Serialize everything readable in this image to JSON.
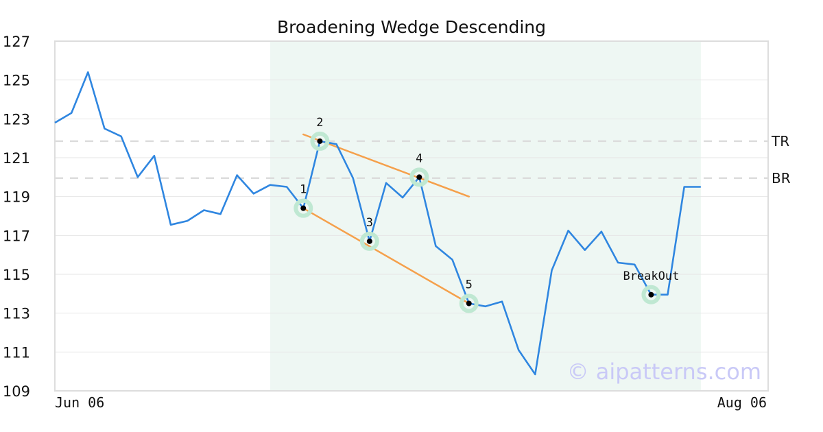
{
  "chart_data": {
    "type": "line",
    "title": "Broadening Wedge Descending",
    "xlabel": "",
    "ylabel": "",
    "ylim": [
      109,
      127
    ],
    "yticks": [
      109,
      111,
      113,
      115,
      117,
      119,
      121,
      123,
      125,
      127
    ],
    "x_tick_labels": [
      {
        "index": 0,
        "label": "Jun 06"
      },
      {
        "index": 43,
        "label": "Aug 06"
      }
    ],
    "x_count": 44,
    "series": [
      {
        "color": "#2f86e0",
        "values": [
          122.8,
          123.3,
          125.4,
          122.5,
          122.1,
          120.0,
          121.1,
          117.55,
          117.75,
          118.3,
          118.1,
          120.1,
          119.15,
          119.6,
          119.5,
          118.4,
          121.85,
          121.7,
          119.95,
          116.7,
          119.7,
          118.95,
          120.0,
          116.45,
          115.75,
          113.5,
          113.35,
          113.6,
          111.1,
          109.85,
          115.2,
          117.25,
          116.25,
          117.2,
          115.6,
          115.5,
          113.95,
          113.95,
          119.5,
          119.5
        ]
      }
    ],
    "shaded_region": {
      "from_index": 13,
      "to_index": 39,
      "color": "#eef7f3"
    },
    "reference_lines": [
      {
        "label": "TR",
        "y": 121.85
      },
      {
        "label": "BR",
        "y": 119.95
      }
    ],
    "trend_lines": [
      {
        "color": "#f5a04b",
        "from": {
          "x": 15,
          "y": 122.2
        },
        "to": {
          "x": 25,
          "y": 119.0
        }
      },
      {
        "color": "#f5a04b",
        "from": {
          "x": 15,
          "y": 118.4
        },
        "to": {
          "x": 25,
          "y": 113.5
        }
      }
    ],
    "points": [
      {
        "label": "1",
        "x": 15,
        "y": 118.4
      },
      {
        "label": "2",
        "x": 16,
        "y": 121.85
      },
      {
        "label": "3",
        "x": 19,
        "y": 116.7
      },
      {
        "label": "4",
        "x": 22,
        "y": 120.0
      },
      {
        "label": "5",
        "x": 25,
        "y": 113.5
      },
      {
        "label": "BreakOut",
        "x": 36,
        "y": 113.95
      }
    ],
    "watermark": "© aipatterns.com",
    "grid": true
  }
}
